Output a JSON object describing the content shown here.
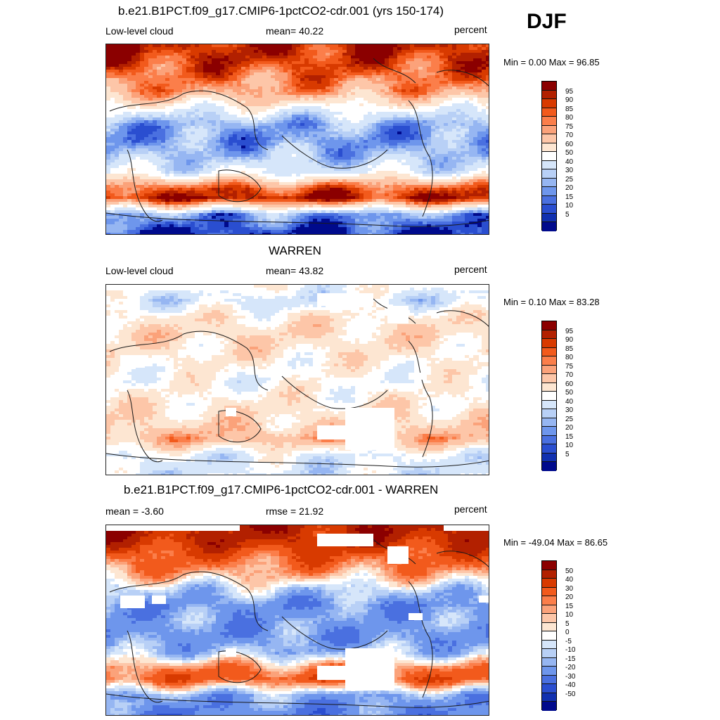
{
  "season_label": "DJF",
  "panels": [
    {
      "title": "b.e21.B1PCT.f09_g17.CMIP6-1pctCO2-cdr.001 (yrs 150-174)",
      "left_label": "Low-level cloud",
      "center_label": "mean=  40.22",
      "right_label": "percent",
      "minmax": "Min =   0.00 Max =  96.85"
    },
    {
      "title": "WARREN",
      "left_label": "Low-level cloud",
      "center_label": "mean=  43.82",
      "right_label": "percent",
      "minmax": "Min =   0.10 Max =  83.28"
    },
    {
      "title": "b.e21.B1PCT.f09_g17.CMIP6-1pctCO2-cdr.001 - WARREN",
      "left_label": "mean =  -3.60",
      "center_label": "rmse =  21.92",
      "right_label": "percent",
      "minmax": "Min = -49.04 Max =  86.65"
    }
  ],
  "colorbar_abs": {
    "labels": [
      "95",
      "90",
      "85",
      "80",
      "75",
      "70",
      "60",
      "50",
      "40",
      "30",
      "25",
      "20",
      "15",
      "10",
      "5"
    ],
    "colors": [
      "#8b0000",
      "#b22000",
      "#d83a00",
      "#f25a1c",
      "#fb7e4a",
      "#fba27a",
      "#fdc6a8",
      "#fde6d2",
      "#ffffff",
      "#d6e6fa",
      "#b8d0f6",
      "#96b6f2",
      "#6e96ec",
      "#4a70e0",
      "#2a4ed0",
      "#1030b0",
      "#000a8c"
    ]
  },
  "colorbar_diff": {
    "labels": [
      "50",
      "40",
      "30",
      "20",
      "15",
      "10",
      "5",
      "0",
      "-5",
      "-10",
      "-15",
      "-20",
      "-30",
      "-40",
      "-50"
    ],
    "colors": [
      "#8b0000",
      "#b22000",
      "#d83a00",
      "#f25a1c",
      "#fb7e4a",
      "#fba27a",
      "#fdc6a8",
      "#fde6d2",
      "#ffffff",
      "#d6e6fa",
      "#b8d0f6",
      "#96b6f2",
      "#6e96ec",
      "#4a70e0",
      "#2a4ed0",
      "#1030b0",
      "#000a8c"
    ]
  },
  "fields": {
    "model": [
      {
        "lat": 90,
        "value": 92
      },
      {
        "lat": 75,
        "value": 88
      },
      {
        "lat": 60,
        "value": 80
      },
      {
        "lat": 45,
        "value": 72
      },
      {
        "lat": 30,
        "value": 45
      },
      {
        "lat": 15,
        "value": 22
      },
      {
        "lat": 0,
        "value": 18
      },
      {
        "lat": -15,
        "value": 25
      },
      {
        "lat": -30,
        "value": 38
      },
      {
        "lat": -45,
        "value": 82
      },
      {
        "lat": -55,
        "value": 94
      },
      {
        "lat": -70,
        "value": 20
      },
      {
        "lat": -90,
        "value": 3
      }
    ],
    "obs": [
      {
        "lat": 90,
        "value": 45
      },
      {
        "lat": 75,
        "value": 35
      },
      {
        "lat": 60,
        "value": 52
      },
      {
        "lat": 45,
        "value": 58
      },
      {
        "lat": 30,
        "value": 55
      },
      {
        "lat": 15,
        "value": 50
      },
      {
        "lat": 0,
        "value": 45
      },
      {
        "lat": -15,
        "value": 50
      },
      {
        "lat": -30,
        "value": 55
      },
      {
        "lat": -45,
        "value": 62
      },
      {
        "lat": -55,
        "value": 70
      },
      {
        "lat": -70,
        "value": 40
      },
      {
        "lat": -90,
        "value": 35
      }
    ],
    "diff": [
      {
        "lat": 90,
        "value": 45
      },
      {
        "lat": 75,
        "value": 40
      },
      {
        "lat": 60,
        "value": 25
      },
      {
        "lat": 45,
        "value": 12
      },
      {
        "lat": 30,
        "value": -10
      },
      {
        "lat": 15,
        "value": -25
      },
      {
        "lat": 0,
        "value": -22
      },
      {
        "lat": -15,
        "value": -25
      },
      {
        "lat": -30,
        "value": -15
      },
      {
        "lat": -45,
        "value": 18
      },
      {
        "lat": -55,
        "value": 25
      },
      {
        "lat": -70,
        "value": -20
      },
      {
        "lat": -90,
        "value": -30
      }
    ]
  }
}
